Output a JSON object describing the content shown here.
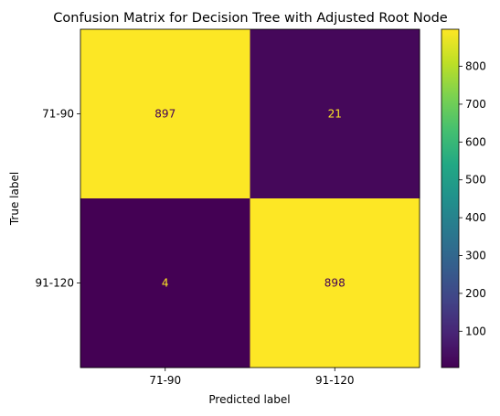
{
  "chart_data": {
    "type": "heatmap",
    "title": "Confusion Matrix for Decision Tree with Adjusted Root Node",
    "xlabel": "Predicted label",
    "ylabel": "True label",
    "x_categories": [
      "71-90",
      "91-120"
    ],
    "y_categories": [
      "71-90",
      "91-120"
    ],
    "values": [
      [
        897,
        21
      ],
      [
        4,
        898
      ]
    ],
    "colormap": "viridis",
    "colorbar": {
      "min": 4,
      "max": 898,
      "ticks": [
        100,
        200,
        300,
        400,
        500,
        600,
        700,
        800
      ]
    },
    "text_colors": {
      "on_bright": "#440154",
      "on_dark": "#fde725"
    }
  }
}
